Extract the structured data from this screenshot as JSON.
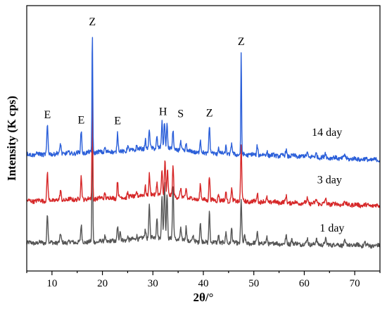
{
  "chart_data": {
    "type": "line",
    "xlabel": "2θ/°",
    "ylabel": "Intensity (K cps)",
    "xlim": [
      5,
      75
    ],
    "x_ticks": [
      10,
      20,
      30,
      40,
      50,
      60,
      70
    ],
    "grid": false,
    "legend": "none",
    "series": [
      {
        "name": "1 day",
        "color": "#555555",
        "baseline": [
          [
            5,
            0.9
          ],
          [
            20,
            0.93
          ],
          [
            40,
            0.91
          ],
          [
            60,
            0.88
          ],
          [
            75,
            0.84
          ]
        ],
        "peaks": [
          [
            9.1,
            0.63
          ],
          [
            11.7,
            0.18
          ],
          [
            15.8,
            0.35
          ],
          [
            18.0,
            3.0
          ],
          [
            20.5,
            0.12
          ],
          [
            23.0,
            0.33
          ],
          [
            23.5,
            0.22
          ],
          [
            25.0,
            0.1
          ],
          [
            26.8,
            0.09
          ],
          [
            28.5,
            0.2
          ],
          [
            29.3,
            0.71
          ],
          [
            30.8,
            0.45
          ],
          [
            31.8,
            0.86
          ],
          [
            32.3,
            1.2
          ],
          [
            32.8,
            0.98
          ],
          [
            34.0,
            1.12
          ],
          [
            35.5,
            0.25
          ],
          [
            36.6,
            0.3
          ],
          [
            38.0,
            0.1
          ],
          [
            39.4,
            0.44
          ],
          [
            41.2,
            0.66
          ],
          [
            43.0,
            0.18
          ],
          [
            44.5,
            0.22
          ],
          [
            45.6,
            0.32
          ],
          [
            47.5,
            0.93
          ],
          [
            48.2,
            0.15
          ],
          [
            50.7,
            0.27
          ],
          [
            52.6,
            0.12
          ],
          [
            56.4,
            0.16
          ],
          [
            57.5,
            0.12
          ],
          [
            60.6,
            0.12
          ],
          [
            62.4,
            0.1
          ],
          [
            64.2,
            0.12
          ],
          [
            68.0,
            0.08
          ],
          [
            72.0,
            0.08
          ]
        ]
      },
      {
        "name": "3 day",
        "color": "#d62728",
        "baseline": [
          [
            5,
            1.8
          ],
          [
            20,
            1.86
          ],
          [
            40,
            1.82
          ],
          [
            60,
            1.76
          ],
          [
            75,
            1.7
          ]
        ],
        "peaks": [
          [
            9.1,
            0.6
          ],
          [
            11.7,
            0.2
          ],
          [
            15.8,
            0.48
          ],
          [
            18.0,
            2.5
          ],
          [
            20.5,
            0.12
          ],
          [
            23.0,
            0.38
          ],
          [
            25.0,
            0.1
          ],
          [
            26.8,
            0.1
          ],
          [
            28.5,
            0.2
          ],
          [
            29.3,
            0.44
          ],
          [
            30.8,
            0.28
          ],
          [
            31.8,
            0.52
          ],
          [
            32.4,
            0.75
          ],
          [
            32.9,
            0.55
          ],
          [
            34.0,
            0.62
          ],
          [
            35.5,
            0.18
          ],
          [
            36.6,
            0.22
          ],
          [
            39.4,
            0.33
          ],
          [
            41.2,
            0.52
          ],
          [
            43.0,
            0.16
          ],
          [
            44.5,
            0.2
          ],
          [
            45.6,
            0.26
          ],
          [
            47.5,
            1.2
          ],
          [
            50.7,
            0.2
          ],
          [
            52.6,
            0.1
          ],
          [
            56.4,
            0.14
          ],
          [
            60.6,
            0.1
          ],
          [
            62.4,
            0.08
          ],
          [
            64.2,
            0.1
          ],
          [
            68.0,
            0.08
          ]
        ]
      },
      {
        "name": "14 day",
        "color": "#2b5fd9",
        "baseline": [
          [
            5,
            2.8
          ],
          [
            20,
            2.85
          ],
          [
            40,
            2.83
          ],
          [
            60,
            2.76
          ],
          [
            75,
            2.68
          ]
        ],
        "peaks": [
          [
            9.1,
            0.6
          ],
          [
            11.7,
            0.22
          ],
          [
            15.8,
            0.48
          ],
          [
            18.0,
            2.6
          ],
          [
            20.5,
            0.12
          ],
          [
            23.0,
            0.4
          ],
          [
            25.0,
            0.1
          ],
          [
            26.8,
            0.1
          ],
          [
            28.5,
            0.2
          ],
          [
            29.3,
            0.4
          ],
          [
            30.8,
            0.24
          ],
          [
            31.8,
            0.55
          ],
          [
            32.3,
            0.58
          ],
          [
            32.8,
            0.52
          ],
          [
            34.0,
            0.4
          ],
          [
            35.5,
            0.16
          ],
          [
            36.6,
            0.18
          ],
          [
            39.4,
            0.26
          ],
          [
            41.2,
            0.58
          ],
          [
            43.0,
            0.14
          ],
          [
            44.5,
            0.18
          ],
          [
            45.6,
            0.22
          ],
          [
            47.5,
            2.15
          ],
          [
            50.7,
            0.22
          ],
          [
            52.6,
            0.1
          ],
          [
            56.4,
            0.14
          ],
          [
            60.6,
            0.1
          ],
          [
            62.4,
            0.08
          ],
          [
            64.2,
            0.1
          ],
          [
            68.0,
            0.08
          ]
        ]
      }
    ],
    "annotations": [
      {
        "text": "E",
        "x": 9.1,
        "y": 3.58
      },
      {
        "text": "E",
        "x": 15.8,
        "y": 3.47
      },
      {
        "text": "Z",
        "x": 18.0,
        "y": 5.58
      },
      {
        "text": "E",
        "x": 23.0,
        "y": 3.45
      },
      {
        "text": "H",
        "x": 32.0,
        "y": 3.65
      },
      {
        "text": "S",
        "x": 35.5,
        "y": 3.6
      },
      {
        "text": "Z",
        "x": 41.2,
        "y": 3.62
      },
      {
        "text": "Z",
        "x": 47.5,
        "y": 5.15
      }
    ],
    "series_labels": [
      {
        "text": "14 day",
        "x": 64.5,
        "y": 3.2
      },
      {
        "text": "3 day",
        "x": 65.0,
        "y": 2.18
      },
      {
        "text": "1 day",
        "x": 65.5,
        "y": 1.15
      }
    ],
    "ylim": [
      0.3,
      6.0
    ]
  }
}
